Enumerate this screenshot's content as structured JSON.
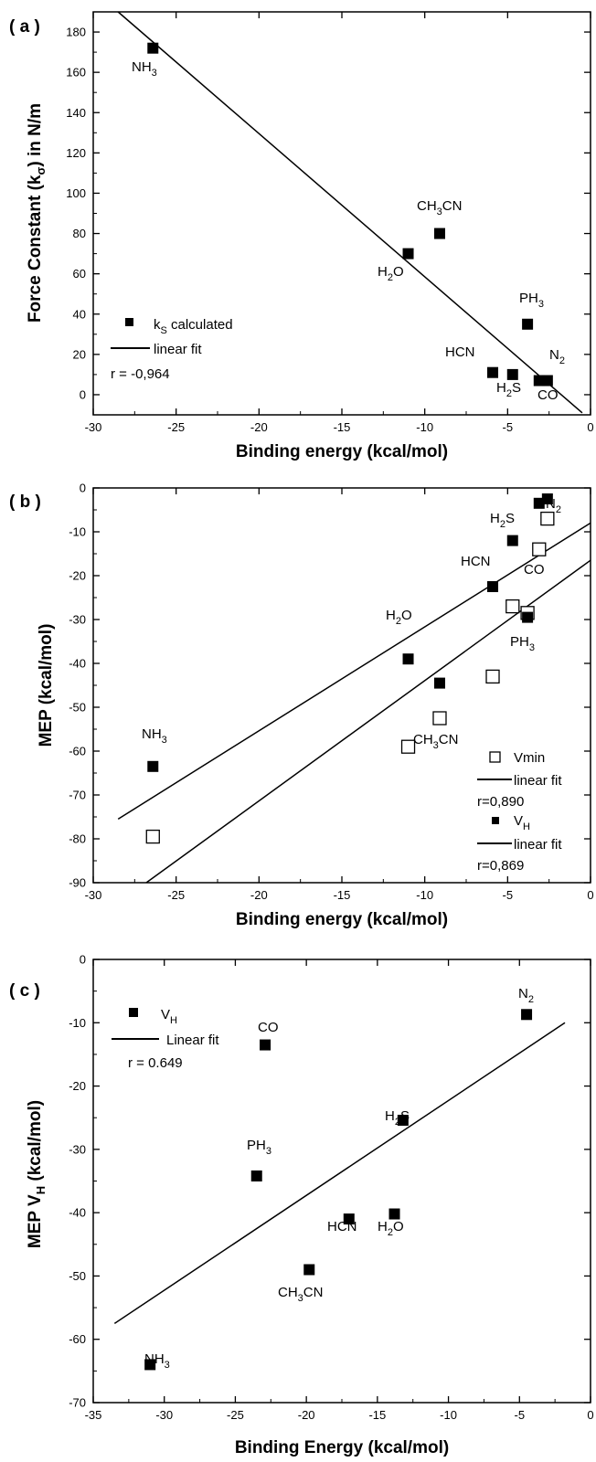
{
  "chart_data": [
    {
      "type": "scatter",
      "panel_label": "( a )",
      "xlabel": "Binding energy (kcal/mol)",
      "ylabel": "Force Constant (kσ) in N/m",
      "xlim": [
        -30,
        0
      ],
      "ylim": [
        -10,
        190
      ],
      "xticks": [
        -30,
        -25,
        -20,
        -15,
        -10,
        -5,
        0
      ],
      "yticks": [
        0,
        20,
        40,
        60,
        80,
        100,
        120,
        140,
        160,
        180
      ],
      "points": [
        {
          "label": "NH3",
          "x": -26.4,
          "y": 172
        },
        {
          "label": "H2O",
          "x": -11.0,
          "y": 70
        },
        {
          "label": "CH3CN",
          "x": -9.1,
          "y": 80
        },
        {
          "label": "PH3",
          "x": -3.8,
          "y": 35
        },
        {
          "label": "HCN",
          "x": -5.9,
          "y": 11
        },
        {
          "label": "H2S",
          "x": -4.7,
          "y": 10
        },
        {
          "label": "N2",
          "x": -2.6,
          "y": 7
        },
        {
          "label": "CO",
          "x": -3.1,
          "y": 7
        }
      ],
      "fit_line": {
        "x": [
          -28.5,
          -0.5
        ],
        "y": [
          190,
          -9
        ]
      },
      "legend": [
        {
          "marker": "filled-square",
          "label": "kS calculated"
        },
        {
          "marker": "line",
          "label": "linear fit"
        },
        {
          "marker": "none",
          "label": "r = -0,964"
        }
      ],
      "legend_position": "bottom-left",
      "grid": false
    },
    {
      "type": "scatter",
      "panel_label": "( b )",
      "xlabel": "Binding energy (kcal/mol)",
      "ylabel": "MEP (kcal/mol)",
      "xlim": [
        -30,
        0
      ],
      "ylim": [
        -90,
        0
      ],
      "xticks": [
        -30,
        -25,
        -20,
        -15,
        -10,
        -5,
        0
      ],
      "yticks": [
        0,
        -10,
        -20,
        -30,
        -40,
        -50,
        -60,
        -70,
        -80,
        -90
      ],
      "series": [
        {
          "name": "VH",
          "marker": "filled-square",
          "points": [
            {
              "label": "NH3",
              "x": -26.4,
              "y": -63.5
            },
            {
              "label": "H2O",
              "x": -11.0,
              "y": -39
            },
            {
              "label": "CH3CN",
              "x": -9.1,
              "y": -44.5
            },
            {
              "label": "HCN",
              "x": -5.9,
              "y": -22.5
            },
            {
              "label": "H2S",
              "x": -4.7,
              "y": -12
            },
            {
              "label": "PH3",
              "x": -3.8,
              "y": -29.5
            },
            {
              "label": "N2",
              "x": -2.6,
              "y": -2.5
            },
            {
              "label": "CO",
              "x": -3.1,
              "y": -3.5
            }
          ],
          "fit_line": {
            "x": [
              -28.5,
              0
            ],
            "y": [
              -75.5,
              -8
            ]
          }
        },
        {
          "name": "Vmin",
          "marker": "open-square",
          "points": [
            {
              "label": "NH3",
              "x": -26.4,
              "y": -79.5
            },
            {
              "label": "H2O",
              "x": -11.0,
              "y": -59
            },
            {
              "label": "CH3CN",
              "x": -9.1,
              "y": -52.5
            },
            {
              "label": "HCN",
              "x": -5.9,
              "y": -43
            },
            {
              "label": "H2S",
              "x": -4.7,
              "y": -27
            },
            {
              "label": "PH3",
              "x": -3.8,
              "y": -28.5
            },
            {
              "label": "N2",
              "x": -2.6,
              "y": -7
            },
            {
              "label": "CO",
              "x": -3.1,
              "y": -14
            }
          ],
          "fit_line": {
            "x": [
              -26.8,
              0
            ],
            "y": [
              -90,
              -16.5
            ]
          }
        }
      ],
      "point_labels": [
        {
          "label": "NH3",
          "x": -26.4,
          "y": -56
        },
        {
          "label": "H2O",
          "x": -11.0,
          "y": -33
        },
        {
          "label": "CH3CN",
          "x": -7.3,
          "y": -58
        },
        {
          "label": "HCN",
          "x": -6.8,
          "y": -18
        },
        {
          "label": "H2S",
          "x": -5.1,
          "y": -7.5
        },
        {
          "label": "PH3",
          "x": -3.2,
          "y": -36
        },
        {
          "label": "N2",
          "x": -1.2,
          "y": -5
        },
        {
          "label": "CO",
          "x": -2.4,
          "y": -18
        }
      ],
      "legend": [
        {
          "marker": "open-square",
          "label": "Vmin"
        },
        {
          "marker": "line",
          "label": "linear fit"
        },
        {
          "marker": "none",
          "label": "r=0,890"
        },
        {
          "marker": "filled-square",
          "label": "VH"
        },
        {
          "marker": "line",
          "label": "linear fit"
        },
        {
          "marker": "none",
          "label": "r=0,869"
        }
      ],
      "legend_position": "bottom-right",
      "grid": false
    },
    {
      "type": "scatter",
      "panel_label": "( c )",
      "xlabel": "Binding Energy (kcal/mol)",
      "ylabel": "MEP VH (kcal/mol)",
      "xlim": [
        -35,
        0
      ],
      "ylim": [
        -70,
        0
      ],
      "xticks": [
        -35,
        -30,
        -25,
        -20,
        -15,
        -10,
        -5,
        0
      ],
      "yticks": [
        0,
        -10,
        -20,
        -30,
        -40,
        -50,
        -60,
        -70
      ],
      "points": [
        {
          "label": "NH3",
          "x": -31,
          "y": -64
        },
        {
          "label": "CH3CN",
          "x": -19.8,
          "y": -49
        },
        {
          "label": "PH3",
          "x": -23.5,
          "y": -34.2
        },
        {
          "label": "HCN",
          "x": -17,
          "y": -41
        },
        {
          "label": "H2O",
          "x": -13.8,
          "y": -40.2
        },
        {
          "label": "H2S",
          "x": -13.2,
          "y": -25.4
        },
        {
          "label": "CO",
          "x": -22.9,
          "y": -13.5
        },
        {
          "label": "N2",
          "x": -4.5,
          "y": -8.7
        }
      ],
      "fit_line": {
        "x": [
          -33.5,
          -1.8
        ],
        "y": [
          -57.5,
          -10
        ]
      },
      "legend": [
        {
          "marker": "filled-square",
          "label": "VH"
        },
        {
          "marker": "line",
          "label": "Linear fit"
        },
        {
          "marker": "none",
          "label": "r = 0.649"
        }
      ],
      "legend_position": "top-left",
      "grid": false
    }
  ]
}
